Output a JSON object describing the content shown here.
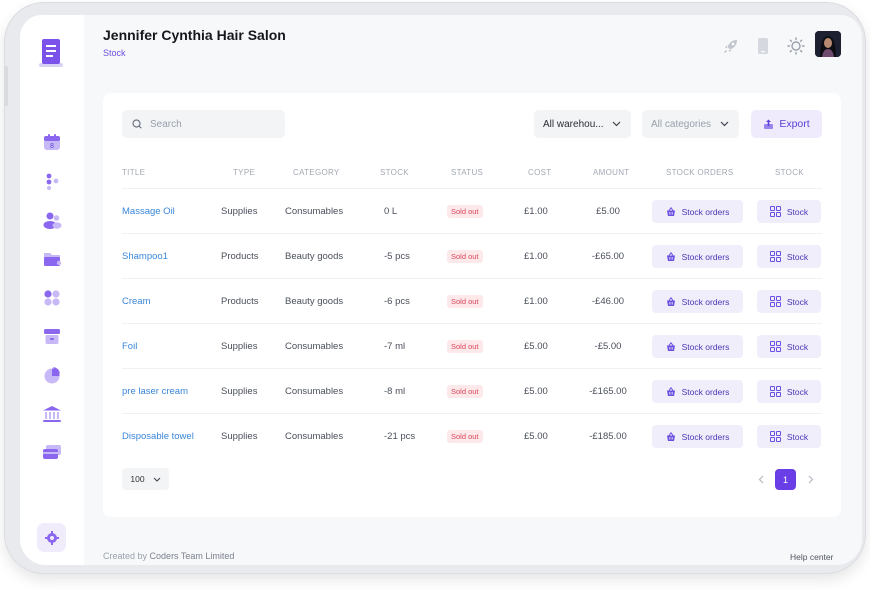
{
  "header": {
    "title": "Jennifer Cynthia Hair Salon",
    "subtitle": "Stock"
  },
  "sidebar": {
    "items": [
      {
        "icon": "calendar-icon",
        "badge": "8"
      },
      {
        "icon": "services-icon"
      },
      {
        "icon": "clients-icon"
      },
      {
        "icon": "folder-icon"
      },
      {
        "icon": "apps-icon"
      },
      {
        "icon": "store-icon"
      },
      {
        "icon": "reports-pie-icon"
      },
      {
        "icon": "bank-icon"
      },
      {
        "icon": "payments-card-icon"
      }
    ],
    "settings_icon": "gear-icon"
  },
  "toolbar": {
    "search_placeholder": "Search",
    "warehouse_select": "All warehou...",
    "category_select": "All categories",
    "export_label": "Export"
  },
  "table": {
    "columns": [
      "TITLE",
      "TYPE",
      "CATEGORY",
      "STOCK",
      "STATUS",
      "COST",
      "AMOUNT",
      "STOCK ORDERS",
      "STOCK"
    ],
    "rows": [
      {
        "title": "Massage Oil",
        "type": "Supplies",
        "category": "Consumables",
        "stock": "0 L",
        "status": "Sold out",
        "cost": "£1.00",
        "amount": "£5.00",
        "orders_label": "Stock orders",
        "stock_label": "Stock"
      },
      {
        "title": "Shampoo1",
        "type": "Products",
        "category": "Beauty goods",
        "stock": "-5 pcs",
        "status": "Sold out",
        "cost": "£1.00",
        "amount": "-£65.00",
        "orders_label": "Stock orders",
        "stock_label": "Stock"
      },
      {
        "title": "Cream",
        "type": "Products",
        "category": "Beauty goods",
        "stock": "-6 pcs",
        "status": "Sold out",
        "cost": "£1.00",
        "amount": "-£46.00",
        "orders_label": "Stock orders",
        "stock_label": "Stock"
      },
      {
        "title": "Foil",
        "type": "Supplies",
        "category": "Consumables",
        "stock": "-7 ml",
        "status": "Sold out",
        "cost": "£5.00",
        "amount": "-£5.00",
        "orders_label": "Stock orders",
        "stock_label": "Stock"
      },
      {
        "title": "pre laser cream",
        "type": "Supplies",
        "category": "Consumables",
        "stock": "-8 ml",
        "status": "Sold out",
        "cost": "£5.00",
        "amount": "-£165.00",
        "orders_label": "Stock orders",
        "stock_label": "Stock"
      },
      {
        "title": "Disposable towel",
        "type": "Supplies",
        "category": "Consumables",
        "stock": "-21 pcs",
        "status": "Sold out",
        "cost": "£5.00",
        "amount": "-£185.00",
        "orders_label": "Stock orders",
        "stock_label": "Stock"
      }
    ]
  },
  "pagination": {
    "page_size": "100",
    "current_page": "1"
  },
  "footer": {
    "created_by_label": "Created by",
    "company": "Coders Team Limited",
    "help": "Help center"
  },
  "colors": {
    "accent": "#6a3ee6",
    "link": "#3a86d9",
    "soldout_bg": "#fde8ea",
    "soldout_text": "#d9475c"
  }
}
